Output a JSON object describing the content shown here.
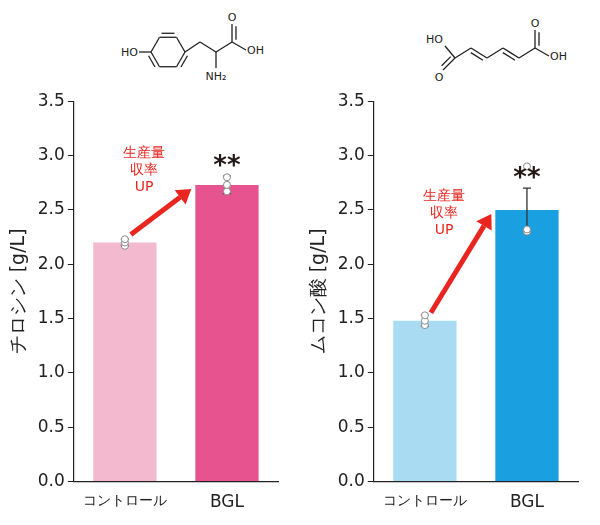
{
  "structures": [
    [
      "HO",
      "NH₂",
      "O",
      "OH"
    ],
    [
      "HO",
      "O",
      "O",
      "OH"
    ]
  ],
  "chart_data": [
    {
      "type": "bar",
      "y_label": "チロシン [g/L]",
      "categories": [
        "コントロール",
        "BGL"
      ],
      "values": [
        2.2,
        2.73
      ],
      "errors": [
        0.03,
        0.08
      ],
      "points": [
        [
          2.17,
          2.2,
          2.23
        ],
        [
          2.67,
          2.73,
          2.8
        ]
      ],
      "colors": [
        "#f2b9cf",
        "#e6538e"
      ],
      "ylim": [
        0,
        3.5
      ],
      "yticks": [
        {
          "value": 0,
          "label": "0.0"
        },
        0.5,
        {
          "value": 1,
          "label": "1.0"
        },
        1.5,
        {
          "value": 2,
          "label": "2.0"
        },
        2.5,
        {
          "value": 3,
          "label": "3.0"
        },
        3.5
      ],
      "grid": false,
      "annotations": [
        {
          "text": [
            "生産量",
            "収率",
            "UP"
          ],
          "color": "#e8251f"
        },
        {
          "text": [
            "**"
          ],
          "color": "#231815"
        }
      ]
    },
    {
      "type": "bar",
      "y_label": "ムコン酸 [g/L]",
      "categories": [
        "コントロール",
        "BGL"
      ],
      "values": [
        1.48,
        2.5
      ],
      "errors": [
        0.05,
        0.2
      ],
      "points": [
        [
          1.44,
          1.48,
          1.53
        ],
        [
          2.3,
          2.32,
          2.9
        ]
      ],
      "colors": [
        "#a9dcf3",
        "#1a9fe0"
      ],
      "ylim": [
        0,
        3.5
      ],
      "yticks": [
        {
          "value": 0,
          "label": "0.0"
        },
        0.5,
        {
          "value": 1,
          "label": "1.0"
        },
        1.5,
        {
          "value": 2,
          "label": "2.0"
        },
        2.5,
        {
          "value": 3,
          "label": "3.0"
        },
        3.5
      ],
      "grid": false,
      "annotations": [
        {
          "text": [
            "生産量",
            "収率",
            "UP"
          ],
          "color": "#e8251f"
        },
        {
          "text": [
            "**"
          ],
          "color": "#231815"
        }
      ]
    }
  ]
}
